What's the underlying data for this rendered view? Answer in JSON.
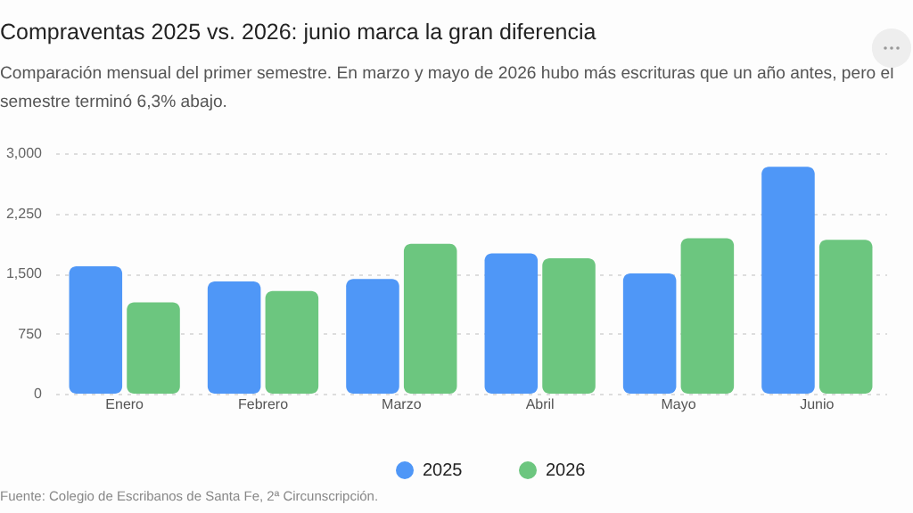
{
  "chart_data": {
    "type": "bar",
    "title": "Compraventas 2025 vs. 2026: junio marca la gran diferencia",
    "subtitle": "Comparación mensual del primer semestre. En marzo y mayo de 2026 hubo más escrituras que un año antes, pero el semestre terminó 6,3% abajo.",
    "categories": [
      "Enero",
      "Febrero",
      "Marzo",
      "Abril",
      "Mayo",
      "Junio"
    ],
    "series": [
      {
        "name": "2025",
        "color": "#4f97f7",
        "values": [
          1590,
          1400,
          1430,
          1750,
          1500,
          2830
        ]
      },
      {
        "name": "2026",
        "color": "#6cc67f",
        "values": [
          1140,
          1280,
          1870,
          1690,
          1940,
          1920
        ]
      }
    ],
    "ylim": [
      0,
      3000
    ],
    "yticks": [
      0,
      {
        "value": 750,
        "label": "750"
      },
      {
        "value": 1500,
        "label": "1,500"
      },
      {
        "value": 2250,
        "label": "2,250"
      },
      {
        "value": 3000,
        "label": "3,000"
      }
    ],
    "grid": "y",
    "legend": "bottom",
    "annotations": [
      "Fuente: Colegio de Escribanos de Santa Fe, 2ª Circunscripción."
    ]
  }
}
